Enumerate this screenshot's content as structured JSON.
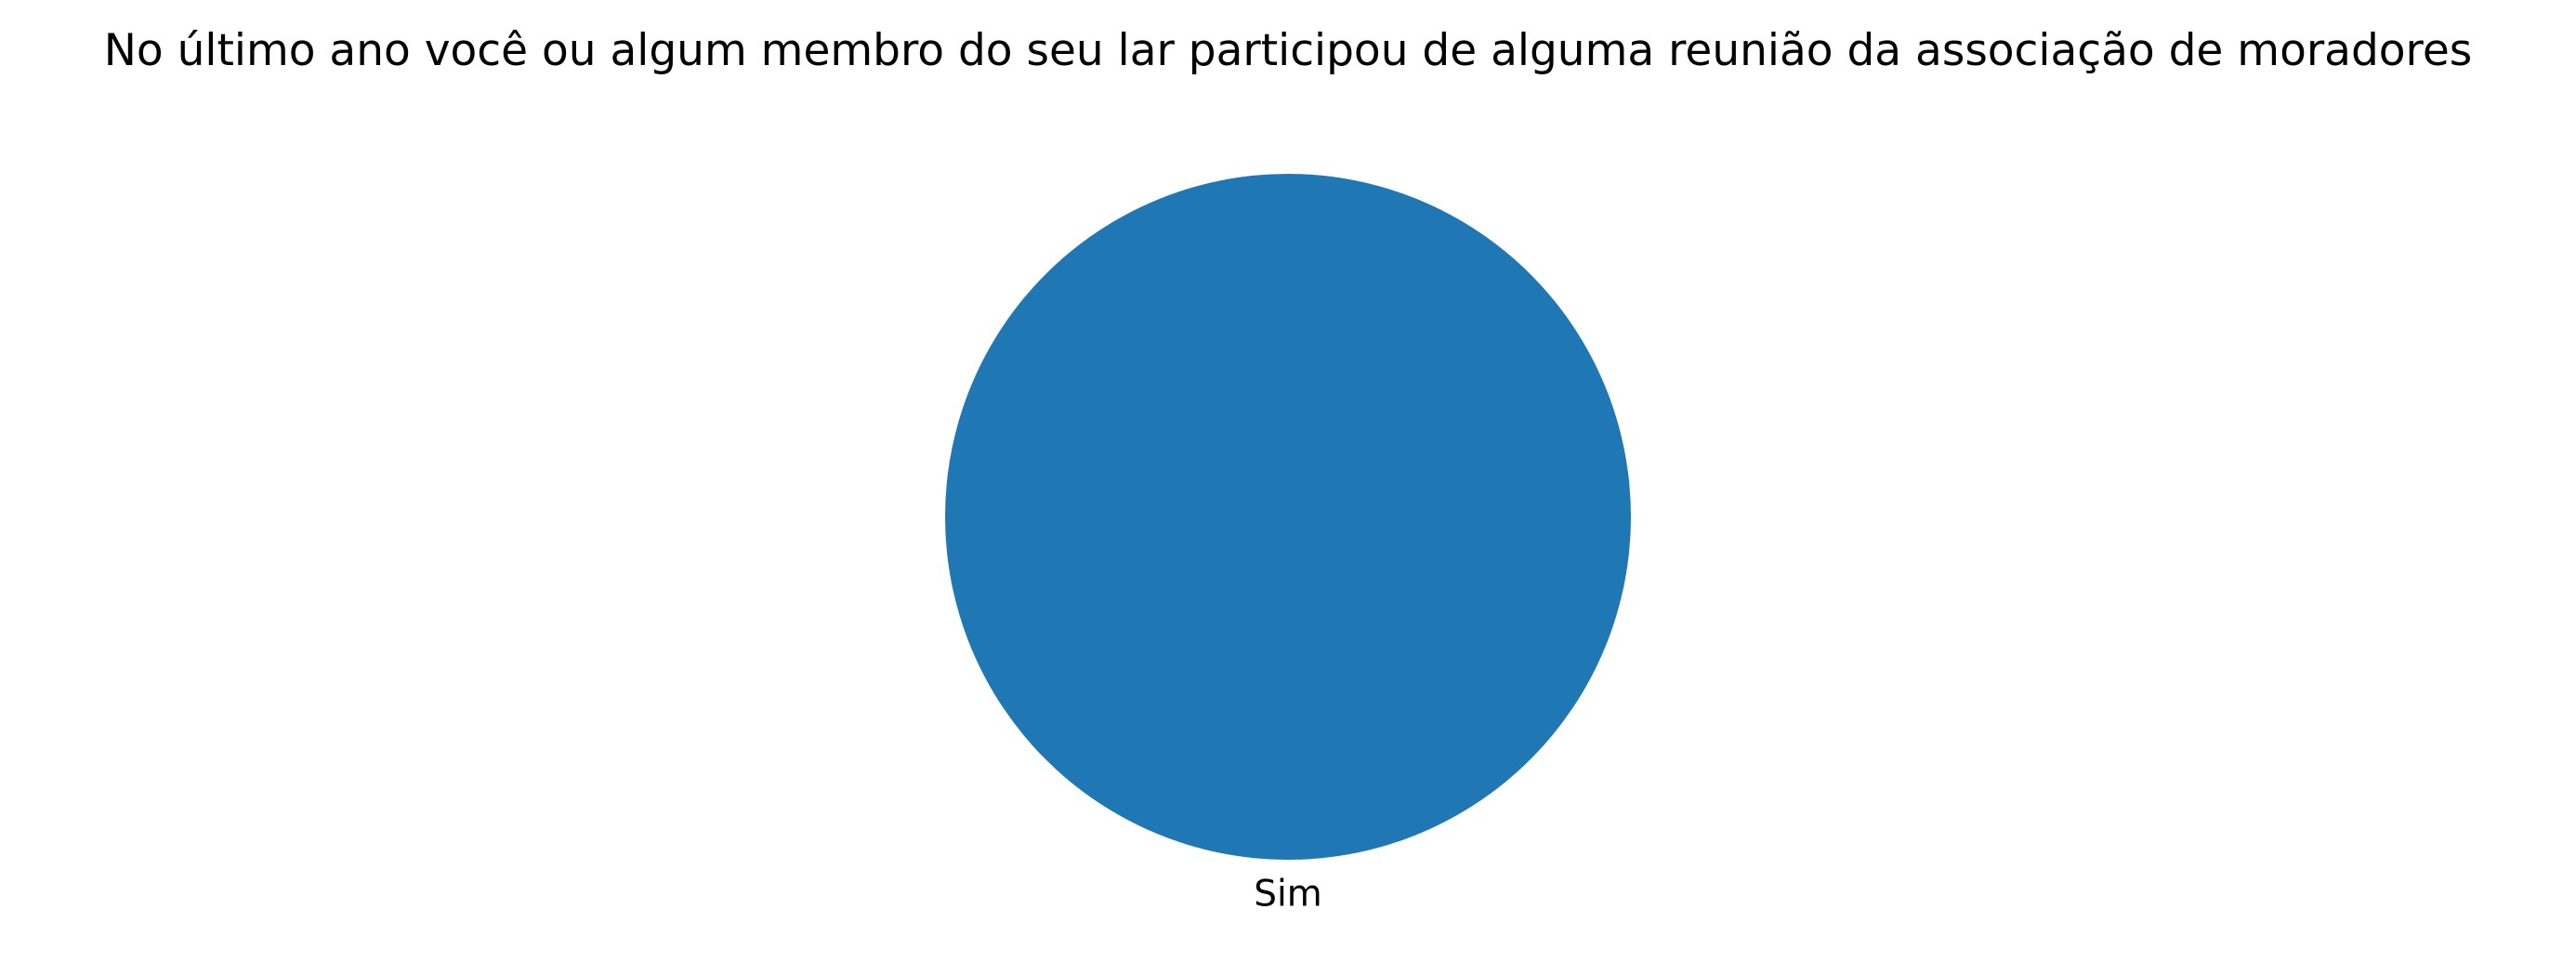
{
  "chart_data": {
    "type": "pie",
    "title": "No último ano você ou algum membro do seu lar participou de alguma reunião da associação de moradores",
    "slices": [
      {
        "label": "Sim",
        "value": 100,
        "color": "#1f77b4"
      }
    ],
    "legend": "none",
    "start_angle": 90,
    "direction": "counterclockwise"
  }
}
